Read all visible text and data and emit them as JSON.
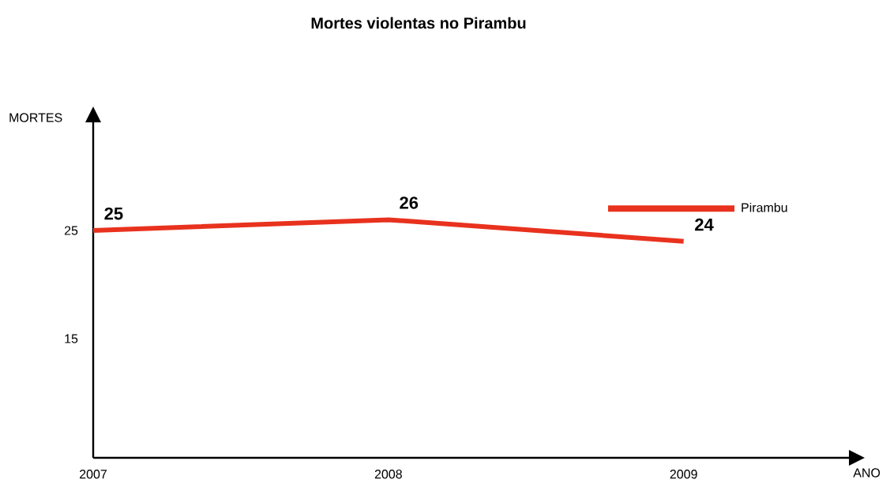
{
  "chart_data": {
    "type": "line",
    "title": "Mortes violentas no Pirambu",
    "xlabel": "ANO",
    "ylabel": "MORTES",
    "categories": [
      "2007",
      "2008",
      "2009"
    ],
    "series": [
      {
        "name": "Pirambu",
        "color": "#e8321e",
        "values": [
          25,
          26,
          24
        ]
      }
    ],
    "ylim": [
      4,
      35
    ],
    "yticks": [
      15,
      25
    ],
    "data_labels": true,
    "legend": "top right",
    "grid": false,
    "marker": "none",
    "line_style": "solid"
  }
}
